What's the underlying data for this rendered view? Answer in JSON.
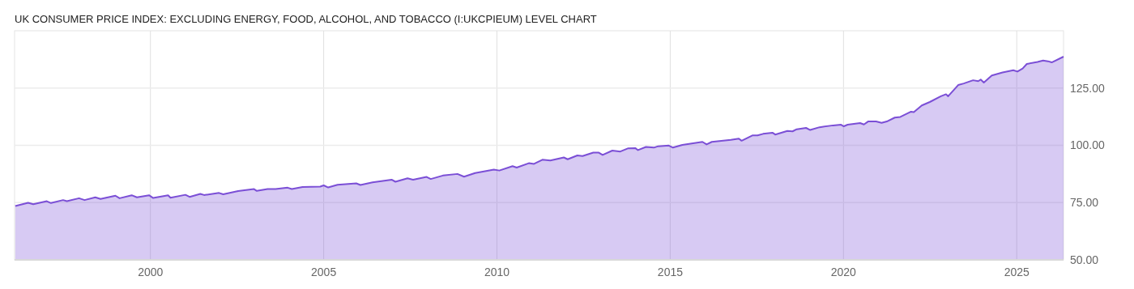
{
  "chart_data": {
    "type": "area",
    "title": "UK CONSUMER PRICE INDEX: EXCLUDING ENERGY, FOOD, ALCOHOL, AND TOBACCO (I:UKCPIEUM) LEVEL CHART",
    "x": [
      1996.1,
      1996.47,
      1996.62,
      1997.01,
      1997.13,
      1997.48,
      1997.59,
      1997.94,
      1998.1,
      1998.41,
      1998.56,
      1998.99,
      1999.11,
      1999.46,
      1999.61,
      1999.96,
      2000.08,
      2000.51,
      2000.58,
      2001.01,
      2001.13,
      2001.44,
      2001.55,
      2001.98,
      2002.1,
      2002.53,
      2002.99,
      2003.07,
      2003.38,
      2003.61,
      2003.96,
      2004.08,
      2004.39,
      2004.9,
      2005.0,
      2005.13,
      2005.4,
      2005.94,
      2006.06,
      2006.41,
      2006.96,
      2007.07,
      2007.42,
      2007.58,
      2007.97,
      2008.09,
      2008.44,
      2008.86,
      2009.05,
      2009.37,
      2009.91,
      2010.07,
      2010.45,
      2010.57,
      2010.92,
      2011.07,
      2011.31,
      2011.54,
      2011.93,
      2012.04,
      2012.32,
      2012.47,
      2012.78,
      2012.94,
      2013.05,
      2013.33,
      2013.56,
      2013.79,
      2013.99,
      2014.07,
      2014.3,
      2014.53,
      2014.65,
      2014.96,
      2015.08,
      2015.35,
      2015.93,
      2016.05,
      2016.2,
      2016.75,
      2016.98,
      2017.06,
      2017.37,
      2017.52,
      2017.68,
      2017.95,
      2018.03,
      2018.38,
      2018.53,
      2018.65,
      2018.92,
      2019.04,
      2019.31,
      2019.7,
      2019.93,
      2020.01,
      2020.12,
      2020.48,
      2020.59,
      2020.71,
      2020.94,
      2021.1,
      2021.25,
      2021.48,
      2021.64,
      2021.95,
      2022.03,
      2022.26,
      2022.49,
      2022.81,
      2022.96,
      2023.02,
      2023.31,
      2023.47,
      2023.74,
      2023.89,
      2023.96,
      2024.05,
      2024.28,
      2024.59,
      2024.9,
      2025.02,
      2025.17,
      2025.29,
      2025.6,
      2025.76,
      2025.9,
      2026.01,
      2026.35
    ],
    "series": [
      {
        "color": "#7b4fd6",
        "values": [
          73.5,
          74.9,
          74.3,
          75.6,
          74.8,
          76.1,
          75.6,
          76.9,
          76.1,
          77.3,
          76.6,
          78.0,
          76.9,
          78.2,
          77.3,
          78.2,
          77.0,
          78.2,
          77.1,
          78.4,
          77.5,
          78.8,
          78.3,
          79.2,
          78.6,
          80.0,
          80.9,
          80.1,
          80.9,
          80.9,
          81.5,
          80.9,
          81.8,
          82.0,
          82.5,
          81.6,
          82.8,
          83.4,
          82.7,
          83.8,
          85.0,
          84.1,
          85.6,
          85.0,
          86.2,
          85.3,
          86.8,
          87.5,
          86.3,
          87.9,
          89.4,
          89.0,
          90.9,
          90.3,
          92.2,
          91.9,
          93.7,
          93.4,
          94.7,
          93.9,
          95.6,
          95.3,
          96.8,
          96.8,
          95.8,
          97.7,
          97.3,
          98.7,
          98.8,
          97.9,
          99.3,
          99.0,
          99.6,
          99.9,
          99.0,
          100.2,
          101.5,
          100.4,
          101.5,
          102.4,
          102.9,
          102.0,
          104.3,
          104.3,
          105.0,
          105.5,
          104.7,
          106.3,
          106.1,
          107.0,
          107.6,
          106.7,
          107.9,
          108.7,
          109.0,
          108.3,
          109.0,
          109.7,
          109.1,
          110.4,
          110.4,
          109.8,
          110.4,
          112.1,
          112.4,
          114.7,
          114.5,
          117.4,
          118.9,
          121.4,
          122.3,
          121.4,
          126.3,
          127.0,
          128.4,
          128.0,
          128.7,
          127.4,
          130.5,
          131.8,
          132.8,
          132.2,
          133.5,
          135.5,
          136.4,
          137.0,
          136.7,
          136.2,
          138.7
        ]
      }
    ],
    "xlim": [
      1996.08,
      2026.35
    ],
    "xticks": [
      2000,
      2005,
      2010,
      2015,
      2020,
      2025
    ],
    "ylim": [
      50,
      150
    ],
    "yticks": [
      {
        "value": 50,
        "label": "50.00"
      },
      {
        "value": 75,
        "label": "75.00"
      },
      {
        "value": 100,
        "label": "100.00"
      },
      {
        "value": 125,
        "label": "125.00"
      }
    ],
    "grid": true
  }
}
